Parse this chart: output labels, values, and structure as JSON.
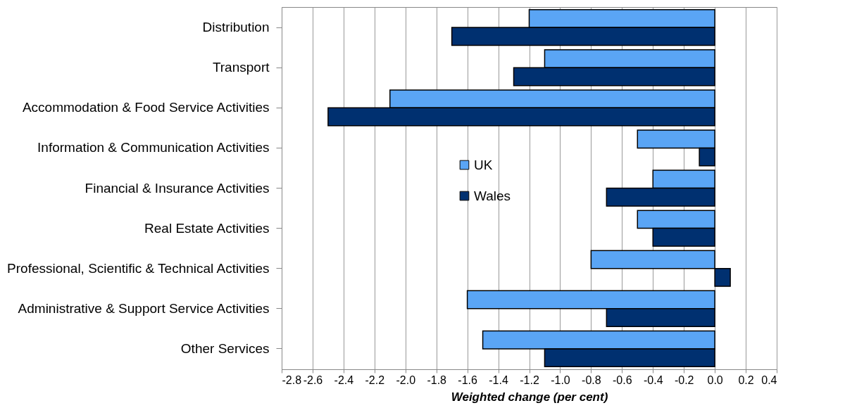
{
  "chart_data": {
    "type": "bar",
    "orientation": "horizontal",
    "xlabel": "Weighted change (per cent)",
    "categories": [
      "Distribution",
      "Transport",
      "Accommodation & Food Service Activities",
      "Information & Communication Activities",
      "Financial & Insurance Activities",
      "Real Estate Activities",
      "Professional, Scientific & Technical Activities",
      "Administrative & Support Service Activities",
      "Other Services"
    ],
    "series": [
      {
        "name": "UK",
        "color": "#5aa5f5",
        "values": [
          -1.2,
          -1.1,
          -2.1,
          -0.5,
          -0.4,
          -0.5,
          -0.8,
          -1.6,
          -1.5
        ]
      },
      {
        "name": "Wales",
        "color": "#003070",
        "values": [
          -1.7,
          -1.3,
          -2.5,
          -0.1,
          -0.7,
          -0.4,
          0.1,
          -0.7,
          -1.1
        ]
      }
    ],
    "xlim": [
      -2.8,
      0.4
    ],
    "xticks": [
      {
        "value": -2.8,
        "label": "-2.8"
      },
      {
        "value": -2.6,
        "label": "-2.6"
      },
      {
        "value": -2.4,
        "label": "-2.4"
      },
      {
        "value": -2.2,
        "label": "-2.2"
      },
      {
        "value": -2.0,
        "label": "-2.0"
      },
      {
        "value": -1.8,
        "label": "-1.8"
      },
      {
        "value": -1.6,
        "label": "-1.6"
      },
      {
        "value": -1.4,
        "label": "-1.4"
      },
      {
        "value": -1.2,
        "label": "-1.2"
      },
      {
        "value": -1.0,
        "label": "-1.0"
      },
      {
        "value": -0.8,
        "label": "-0.8"
      },
      {
        "value": -0.6,
        "label": "-0.6"
      },
      {
        "value": -0.4,
        "label": "-0.4"
      },
      {
        "value": -0.2,
        "label": "-0.2"
      },
      {
        "value": 0,
        "label": "0.0"
      },
      {
        "value": 0.2,
        "label": "0.2"
      },
      {
        "value": 0.4,
        "label": "0.4"
      }
    ],
    "grid": "x",
    "legend": "left"
  }
}
